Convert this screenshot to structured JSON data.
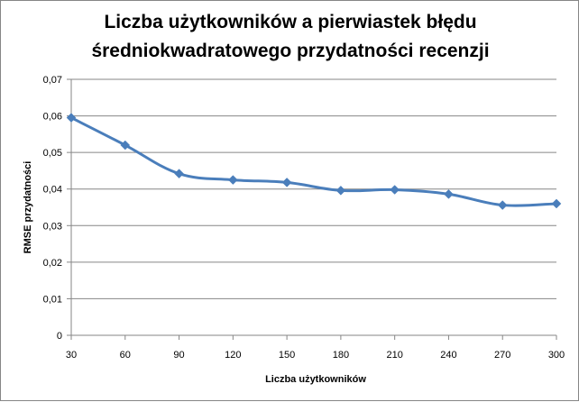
{
  "chart_data": {
    "type": "line",
    "title_lines": [
      "Liczba użytkowników a pierwiastek błędu",
      "średniokwadratowego przydatności recenzji"
    ],
    "xlabel": "Liczba użytkowników",
    "ylabel": "RMSE przydatności",
    "categories": [
      "30",
      "60",
      "90",
      "120",
      "150",
      "180",
      "210",
      "240",
      "270",
      "300"
    ],
    "series": [
      {
        "values": [
          0.0595,
          0.052,
          0.0442,
          0.0425,
          0.0418,
          0.0396,
          0.0398,
          0.0386,
          0.0356,
          0.036
        ],
        "color": "#4a7ebb"
      }
    ],
    "ylim": [
      0,
      0.07
    ],
    "yticks": [
      "0",
      "0,01",
      "0,02",
      "0,03",
      "0,04",
      "0,05",
      "0,06",
      "0,07"
    ],
    "grid": true,
    "legend": "none",
    "gridline_color": "#868686"
  }
}
